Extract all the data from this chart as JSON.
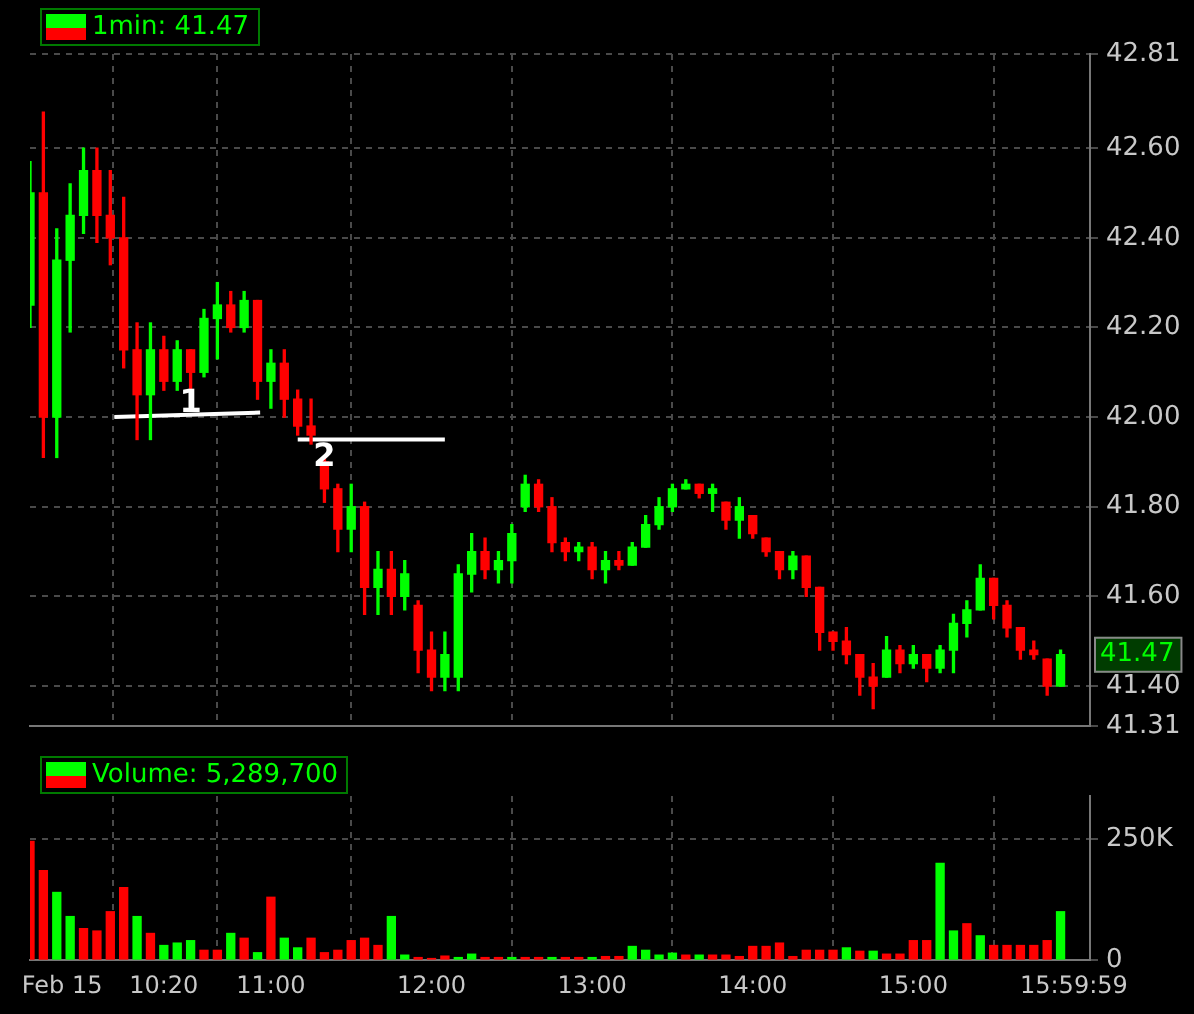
{
  "chart_data": [
    {
      "type": "candlestick",
      "title": "1min: 41.47",
      "x": [
        9.5,
        9.5833,
        9.6667,
        9.75,
        9.8333,
        9.9167,
        10,
        10.0833,
        10.1667,
        10.25,
        10.3333,
        10.4167,
        10.5,
        10.5833,
        10.6667,
        10.75,
        10.8333,
        10.9167,
        11,
        11.0833,
        11.1667,
        11.25,
        11.3333,
        11.4167,
        11.5,
        11.5833,
        11.6667,
        11.75,
        11.8333,
        11.9167,
        12,
        12.0833,
        12.1667,
        12.25,
        12.3333,
        12.4167,
        12.5,
        12.5833,
        12.6667,
        12.75,
        12.8333,
        12.9167,
        13,
        13.0833,
        13.1667,
        13.25,
        13.3333,
        13.4167,
        13.5,
        13.5833,
        13.6667,
        13.75,
        13.8333,
        13.9167,
        14,
        14.0833,
        14.1667,
        14.25,
        14.3333,
        14.4167,
        14.5,
        14.5833,
        14.6667,
        14.75,
        14.8333,
        14.9167,
        15,
        15.0833,
        15.1667,
        15.25,
        15.3333,
        15.4167,
        15.5,
        15.5833,
        15.6667,
        15.75,
        15.8333,
        15.9167
      ],
      "ohlc": [
        [
          42.25,
          42.57,
          42.2,
          42.5
        ],
        [
          42.5,
          42.68,
          41.91,
          42.0
        ],
        [
          42.0,
          42.42,
          41.91,
          42.35
        ],
        [
          42.35,
          42.52,
          42.19,
          42.45
        ],
        [
          42.45,
          42.6,
          42.41,
          42.55
        ],
        [
          42.55,
          42.6,
          42.39,
          42.45
        ],
        [
          42.45,
          42.55,
          42.34,
          42.4
        ],
        [
          42.4,
          42.49,
          42.11,
          42.15
        ],
        [
          42.15,
          42.21,
          41.95,
          42.05
        ],
        [
          42.05,
          42.21,
          41.95,
          42.15
        ],
        [
          42.15,
          42.18,
          42.06,
          42.08
        ],
        [
          42.08,
          42.17,
          42.06,
          42.15
        ],
        [
          42.15,
          42.15,
          42.06,
          42.1
        ],
        [
          42.1,
          42.24,
          42.09,
          42.22
        ],
        [
          42.22,
          42.3,
          42.13,
          42.25
        ],
        [
          42.25,
          42.28,
          42.19,
          42.2
        ],
        [
          42.2,
          42.28,
          42.19,
          42.26
        ],
        [
          42.26,
          42.26,
          42.04,
          42.08
        ],
        [
          42.08,
          42.15,
          42.02,
          42.12
        ],
        [
          42.12,
          42.15,
          42.0,
          42.04
        ],
        [
          42.04,
          42.06,
          41.96,
          41.98
        ],
        [
          41.98,
          42.04,
          41.94,
          41.96
        ],
        [
          41.9,
          41.91,
          41.81,
          41.84
        ],
        [
          41.84,
          41.85,
          41.7,
          41.75
        ],
        [
          41.75,
          41.85,
          41.7,
          41.8
        ],
        [
          41.8,
          41.81,
          41.56,
          41.62
        ],
        [
          41.62,
          41.7,
          41.56,
          41.66
        ],
        [
          41.66,
          41.7,
          41.56,
          41.6
        ],
        [
          41.6,
          41.68,
          41.57,
          41.65
        ],
        [
          41.58,
          41.59,
          41.43,
          41.48
        ],
        [
          41.48,
          41.52,
          41.39,
          41.42
        ],
        [
          41.42,
          41.52,
          41.39,
          41.47
        ],
        [
          41.42,
          41.67,
          41.39,
          41.65
        ],
        [
          41.65,
          41.74,
          41.61,
          41.7
        ],
        [
          41.7,
          41.73,
          41.64,
          41.66
        ],
        [
          41.66,
          41.7,
          41.63,
          41.68
        ],
        [
          41.68,
          41.76,
          41.63,
          41.74
        ],
        [
          41.8,
          41.87,
          41.79,
          41.85
        ],
        [
          41.85,
          41.86,
          41.79,
          41.8
        ],
        [
          41.8,
          41.82,
          41.7,
          41.72
        ],
        [
          41.72,
          41.73,
          41.68,
          41.7
        ],
        [
          41.7,
          41.72,
          41.68,
          41.71
        ],
        [
          41.71,
          41.72,
          41.64,
          41.66
        ],
        [
          41.66,
          41.7,
          41.63,
          41.68
        ],
        [
          41.68,
          41.7,
          41.66,
          41.67
        ],
        [
          41.67,
          41.72,
          41.67,
          41.71
        ],
        [
          41.71,
          41.78,
          41.71,
          41.76
        ],
        [
          41.76,
          41.82,
          41.75,
          41.8
        ],
        [
          41.8,
          41.85,
          41.79,
          41.84
        ],
        [
          41.84,
          41.86,
          41.84,
          41.85
        ],
        [
          41.85,
          41.85,
          41.82,
          41.83
        ],
        [
          41.83,
          41.85,
          41.79,
          41.84
        ],
        [
          41.81,
          41.81,
          41.75,
          41.77
        ],
        [
          41.77,
          41.82,
          41.73,
          41.8
        ],
        [
          41.78,
          41.78,
          41.73,
          41.74
        ],
        [
          41.73,
          41.73,
          41.69,
          41.7
        ],
        [
          41.7,
          41.7,
          41.64,
          41.66
        ],
        [
          41.66,
          41.7,
          41.64,
          41.69
        ],
        [
          41.69,
          41.69,
          41.6,
          41.62
        ],
        [
          41.62,
          41.62,
          41.48,
          41.52
        ],
        [
          41.52,
          41.52,
          41.48,
          41.5
        ],
        [
          41.5,
          41.53,
          41.45,
          41.47
        ],
        [
          41.47,
          41.47,
          41.38,
          41.42
        ],
        [
          41.42,
          41.45,
          41.35,
          41.4
        ],
        [
          41.42,
          41.51,
          41.42,
          41.48
        ],
        [
          41.48,
          41.49,
          41.43,
          41.45
        ],
        [
          41.45,
          41.49,
          41.44,
          41.47
        ],
        [
          41.47,
          41.47,
          41.41,
          41.44
        ],
        [
          41.44,
          41.49,
          41.43,
          41.48
        ],
        [
          41.48,
          41.56,
          41.43,
          41.54
        ],
        [
          41.54,
          41.59,
          41.51,
          41.57
        ],
        [
          41.57,
          41.67,
          41.57,
          41.64
        ],
        [
          41.64,
          41.64,
          41.55,
          41.58
        ],
        [
          41.58,
          41.59,
          41.51,
          41.53
        ],
        [
          41.53,
          41.53,
          41.46,
          41.48
        ],
        [
          41.48,
          41.5,
          41.46,
          41.47
        ],
        [
          41.46,
          41.46,
          41.38,
          41.4
        ],
        [
          41.4,
          41.48,
          41.4,
          41.47
        ]
      ],
      "series": [
        {
          "type": "line",
          "color": "#ffffff",
          "x": [
            10.025,
            10.933
          ],
          "values": [
            42.0,
            42.01
          ]
        },
        {
          "type": "line",
          "color": "#ffffff",
          "x": [
            11.167,
            12.083
          ],
          "values": [
            41.95,
            41.95
          ]
        }
      ],
      "annotations": [
        {
          "text": "1",
          "x": 10.5,
          "y": 42.03
        },
        {
          "text": "2",
          "x": 11.333,
          "y": 41.91
        },
        "41.47"
      ],
      "xlim": [
        9.5,
        16.1
      ],
      "xticks": [
        {
          "value": 9.7,
          "label": null
        },
        {
          "value": 10.333,
          "label": null
        },
        {
          "value": 11,
          "label": null
        },
        {
          "value": 12,
          "label": null
        },
        {
          "value": 13,
          "label": null
        },
        {
          "value": 14,
          "label": null
        },
        {
          "value": 15,
          "label": null
        },
        {
          "value": 15.9997,
          "label": null
        }
      ],
      "ylim": [
        41.31,
        42.81
      ],
      "yticks": [
        41.31,
        {
          "value": 41.4,
          "label": "41.40"
        },
        {
          "value": 41.6,
          "label": "41.60"
        },
        {
          "value": 41.8,
          "label": "41.80"
        },
        {
          "value": 42.0,
          "label": "42.00"
        },
        {
          "value": 42.2,
          "label": "42.20"
        },
        {
          "value": 42.4,
          "label": "42.40"
        },
        {
          "value": 42.6,
          "label": "42.60"
        },
        42.81
      ],
      "tick_labels": "y",
      "grid": true
    },
    {
      "type": "bar",
      "title": "Volume: 5,289,700",
      "x": [
        9.5,
        9.5833,
        9.6667,
        9.75,
        9.8333,
        9.9167,
        10,
        10.0833,
        10.1667,
        10.25,
        10.3333,
        10.4167,
        10.5,
        10.5833,
        10.6667,
        10.75,
        10.8333,
        10.9167,
        11,
        11.0833,
        11.1667,
        11.25,
        11.3333,
        11.4167,
        11.5,
        11.5833,
        11.6667,
        11.75,
        11.8333,
        11.9167,
        12,
        12.0833,
        12.1667,
        12.25,
        12.3333,
        12.4167,
        12.5,
        12.5833,
        12.6667,
        12.75,
        12.8333,
        12.9167,
        13,
        13.0833,
        13.1667,
        13.25,
        13.3333,
        13.4167,
        13.5,
        13.5833,
        13.6667,
        13.75,
        13.8333,
        13.9167,
        14,
        14.0833,
        14.1667,
        14.25,
        14.3333,
        14.4167,
        14.5,
        14.5833,
        14.6667,
        14.75,
        14.8333,
        14.9167,
        15,
        15.0833,
        15.1667,
        15.25,
        15.3333,
        15.4167,
        15.5,
        15.5833,
        15.6667,
        15.75,
        15.8333,
        15.9167
      ],
      "values": [
        246000,
        185000,
        140000,
        90000,
        65000,
        60000,
        100000,
        150000,
        90000,
        55000,
        30000,
        35000,
        40000,
        20000,
        20000,
        55000,
        45000,
        15000,
        130000,
        45000,
        25000,
        45000,
        15000,
        20000,
        40000,
        45000,
        30000,
        90000,
        10000,
        5000,
        3000,
        8000,
        5000,
        12000,
        5000,
        5000,
        5000,
        5000,
        5000,
        5000,
        5000,
        5000,
        5000,
        7000,
        7000,
        28000,
        20000,
        10000,
        14000,
        10000,
        10000,
        10000,
        10000,
        7000,
        28000,
        28000,
        35000,
        7000,
        20000,
        20000,
        20000,
        25000,
        18000,
        18000,
        12000,
        12000,
        40000,
        40000,
        200000,
        60000,
        75000,
        50000,
        30000,
        30000,
        30000,
        30000,
        40000,
        100000
      ],
      "colors": [
        "#ff0000",
        "#ff0000",
        "#00ff00",
        "#00ff00",
        "#ff0000",
        "#ff0000",
        "#ff0000",
        "#ff0000",
        "#00ff00",
        "#ff0000",
        "#00ff00",
        "#00ff00",
        "#00ff00",
        "#ff0000",
        "#ff0000",
        "#00ff00",
        "#ff0000",
        "#00ff00",
        "#ff0000",
        "#00ff00",
        "#00ff00",
        "#ff0000",
        "#ff0000",
        "#ff0000",
        "#ff0000",
        "#ff0000",
        "#ff0000",
        "#00ff00",
        "#00ff00",
        "#ff0000",
        "#ff0000",
        "#ff0000",
        "#00ff00",
        "#00ff00",
        "#ff0000",
        "#ff0000",
        "#00ff00",
        "#ff0000",
        "#ff0000",
        "#00ff00",
        "#ff0000",
        "#ff0000",
        "#00ff00",
        "#ff0000",
        "#ff0000",
        "#00ff00",
        "#00ff00",
        "#00ff00",
        "#00ff00",
        "#ff0000",
        "#00ff00",
        "#ff0000",
        "#ff0000",
        "#ff0000",
        "#ff0000",
        "#ff0000",
        "#ff0000",
        "#ff0000",
        "#ff0000",
        "#ff0000",
        "#ff0000",
        "#00ff00",
        "#ff0000",
        "#00ff00",
        "#ff0000",
        "#ff0000",
        "#ff0000",
        "#ff0000",
        "#00ff00",
        "#00ff00",
        "#ff0000",
        "#00ff00",
        "#ff0000",
        "#ff0000",
        "#ff0000",
        "#ff0000",
        "#ff0000",
        "#00ff00"
      ],
      "xlim": [
        9.5,
        16.1
      ],
      "xticks": [
        {
          "value": 9.7,
          "label": "Feb 15"
        },
        {
          "value": 10.333,
          "label": "10:20"
        },
        {
          "value": 11,
          "label": "11:00"
        },
        {
          "value": 12,
          "label": "12:00"
        },
        {
          "value": 13,
          "label": "13:00"
        },
        {
          "value": 14,
          "label": "14:00"
        },
        {
          "value": 15,
          "label": "15:00"
        },
        {
          "value": 15.9997,
          "label": "15:59:59"
        }
      ],
      "ylim": [
        0,
        340000
      ],
      "yticks": [
        {
          "value": 0,
          "label": "0"
        },
        {
          "value": 250000,
          "label": "250K"
        }
      ],
      "grid": true
    }
  ]
}
